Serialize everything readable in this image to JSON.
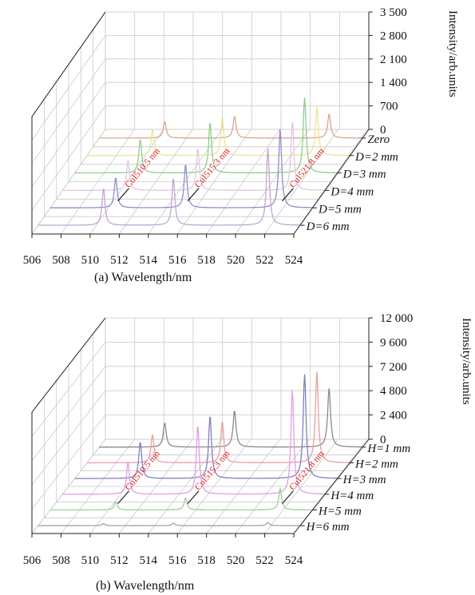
{
  "chart_data": [
    {
      "type": "line",
      "subtype": "3d-waterfall",
      "caption": "(a) Wavelength/nm",
      "ylabel": "Intensity/arb.units",
      "x_ticks": [
        "506",
        "508",
        "510",
        "512",
        "514",
        "516",
        "518",
        "520",
        "522",
        "524"
      ],
      "xlim": [
        506,
        524
      ],
      "y_ticks": [
        "0",
        "700",
        "1 400",
        "2 100",
        "2 800",
        "3 500"
      ],
      "ylim": [
        0,
        3500
      ],
      "depth_labels": [
        "Zero",
        "D=2 mm",
        "D=3 mm",
        "D=4 mm",
        "D=5 mm",
        "D=6 mm"
      ],
      "annotations": [
        {
          "text": "CuI510.5 nm",
          "x": 510.5
        },
        {
          "text": "CuI515.3 nm",
          "x": 515.3
        },
        {
          "text": "CuI521.8 nm",
          "x": 521.8
        }
      ],
      "series": [
        {
          "color": "#d9a88f",
          "peaks": [
            [
              510.5,
              500
            ],
            [
              515.3,
              650
            ],
            [
              521.8,
              720
            ]
          ]
        },
        {
          "color": "#ebe39a",
          "peaks": [
            [
              510.5,
              760
            ],
            [
              515.3,
              1150
            ],
            [
              521.8,
              1450
            ]
          ]
        },
        {
          "color": "#8fce8f",
          "peaks": [
            [
              510.5,
              1000
            ],
            [
              515.3,
              1500
            ],
            [
              521.8,
              2250
            ]
          ]
        },
        {
          "color": "#e2c6e6",
          "peaks": [
            [
              510.5,
              900
            ],
            [
              515.3,
              1250
            ],
            [
              521.8,
              2050
            ]
          ]
        },
        {
          "color": "#8f8fc8",
          "peaks": [
            [
              510.5,
              900
            ],
            [
              515.3,
              1300
            ],
            [
              521.8,
              2350
            ]
          ]
        },
        {
          "color": "#c0a6d0",
          "peaks": [
            [
              510.5,
              1100
            ],
            [
              515.3,
              1400
            ],
            [
              521.8,
              2300
            ]
          ]
        }
      ]
    },
    {
      "type": "line",
      "subtype": "3d-waterfall",
      "caption": "(b) Wavelength/nm",
      "ylabel": "Intensity/arb.units",
      "x_ticks": [
        "506",
        "508",
        "510",
        "512",
        "514",
        "516",
        "518",
        "520",
        "522",
        "524"
      ],
      "xlim": [
        506,
        524
      ],
      "y_ticks": [
        "0",
        "2 400",
        "4 800",
        "7 200",
        "9 600",
        "12 000"
      ],
      "ylim": [
        0,
        12000
      ],
      "depth_labels": [
        "H=1 mm",
        "H=2 mm",
        "H=3 mm",
        "H=4 mm",
        "H=5 mm",
        "H=6 mm"
      ],
      "annotations": [
        {
          "text": "CuI510.5 nm",
          "x": 510.5
        },
        {
          "text": "CuI515.3 nm",
          "x": 515.3
        },
        {
          "text": "CuI521.8 nm",
          "x": 521.8
        }
      ],
      "series": [
        {
          "color": "#8a8a8a",
          "peaks": [
            [
              510.5,
              2400
            ],
            [
              515.3,
              3600
            ],
            [
              521.8,
              5800
            ]
          ]
        },
        {
          "color": "#e8a0a0",
          "peaks": [
            [
              510.5,
              2800
            ],
            [
              515.3,
              4100
            ],
            [
              521.8,
              9000
            ]
          ]
        },
        {
          "color": "#8080c0",
          "peaks": [
            [
              510.5,
              3600
            ],
            [
              515.3,
              6200
            ],
            [
              521.8,
              10300
            ]
          ]
        },
        {
          "color": "#e0a0e0",
          "peaks": [
            [
              510.5,
              3200
            ],
            [
              515.3,
              6800
            ],
            [
              521.8,
              10300
            ]
          ]
        },
        {
          "color": "#9ad09a",
          "peaks": [
            [
              510.5,
              800
            ],
            [
              515.3,
              1200
            ],
            [
              521.8,
              2100
            ]
          ]
        },
        {
          "color": "#a0a0a0",
          "peaks": [
            [
              510.5,
              200
            ],
            [
              515.3,
              250
            ],
            [
              521.8,
              300
            ]
          ]
        }
      ]
    }
  ]
}
